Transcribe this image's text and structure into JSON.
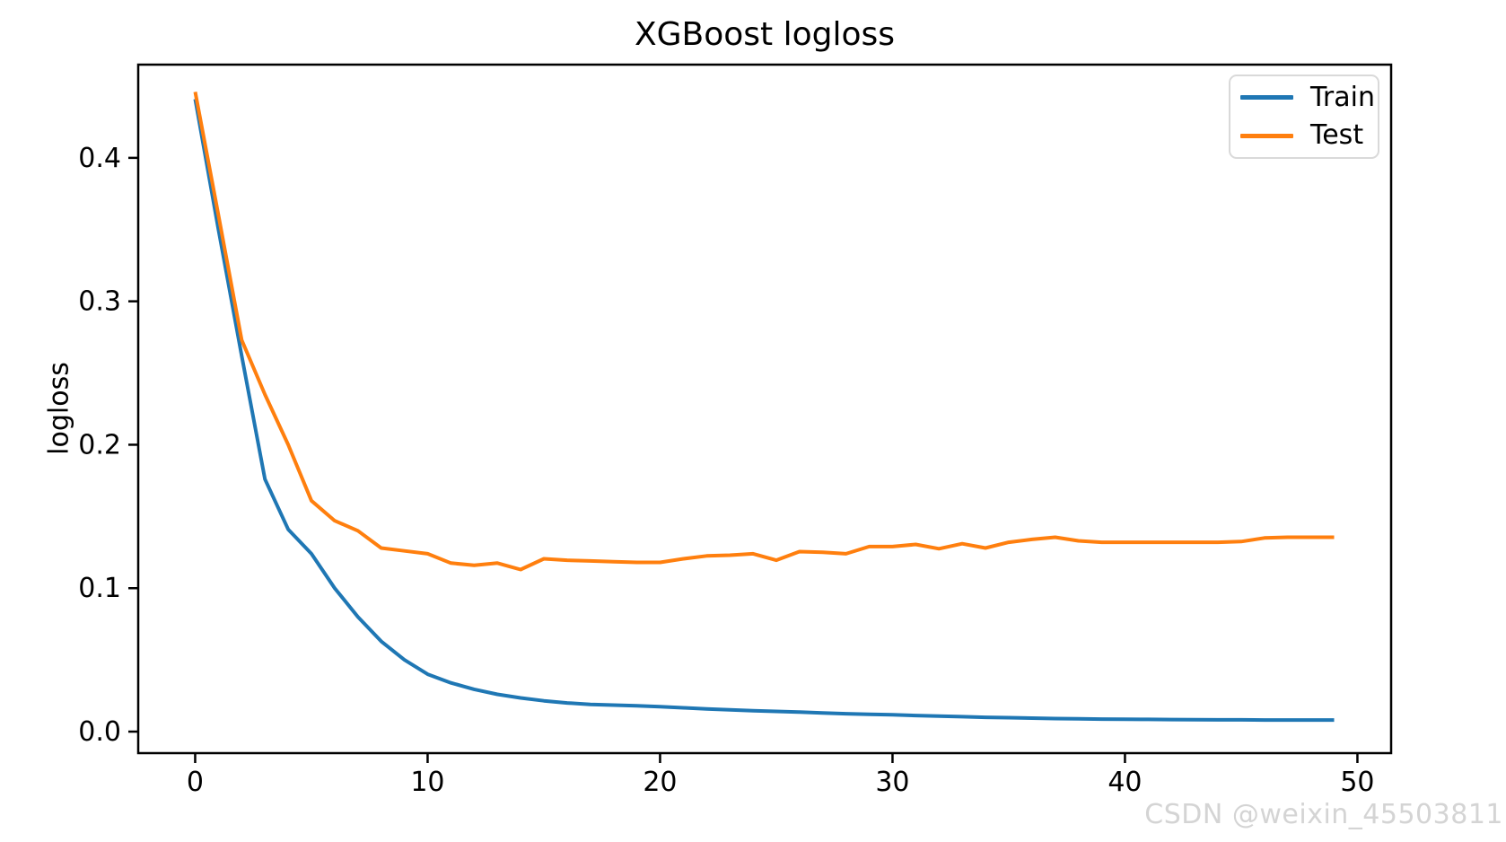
{
  "watermark": {
    "text": "CSDN @weixin_45503811",
    "color": "#d4d4d4"
  },
  "colors": {
    "train_line": "#1f77b4",
    "test_line": "#ff7f0e",
    "axis": "#000000",
    "legend_border": "#d9d9d9",
    "background": "#ffffff"
  },
  "legend": {
    "entries": [
      "Train",
      "Test"
    ],
    "position": "upper right"
  },
  "chart_data": {
    "type": "line",
    "title": "XGBoost logloss",
    "xlabel": "",
    "ylabel": "logloss",
    "x": [
      0,
      1,
      2,
      3,
      4,
      5,
      6,
      7,
      8,
      9,
      10,
      11,
      12,
      13,
      14,
      15,
      16,
      17,
      18,
      19,
      20,
      21,
      22,
      23,
      24,
      25,
      26,
      27,
      28,
      29,
      30,
      31,
      32,
      33,
      34,
      35,
      36,
      37,
      38,
      39,
      40,
      41,
      42,
      43,
      44,
      45,
      46,
      47,
      48,
      49
    ],
    "series": [
      {
        "name": "Train",
        "color": "#1f77b4",
        "values": [
          0.441,
          0.35,
          0.262,
          0.176,
          0.141,
          0.124,
          0.1,
          0.08,
          0.063,
          0.05,
          0.04,
          0.034,
          0.0295,
          0.026,
          0.0235,
          0.0215,
          0.02,
          0.019,
          0.0185,
          0.018,
          0.0174,
          0.0166,
          0.0158,
          0.0152,
          0.0146,
          0.0141,
          0.0136,
          0.013,
          0.0125,
          0.0121,
          0.0117,
          0.0112,
          0.0108,
          0.0104,
          0.01,
          0.0097,
          0.0094,
          0.0091,
          0.0089,
          0.0087,
          0.0086,
          0.0085,
          0.0084,
          0.0083,
          0.0082,
          0.0082,
          0.0081,
          0.0081,
          0.0081,
          0.0081
        ]
      },
      {
        "name": "Test",
        "color": "#ff7f0e",
        "values": [
          0.446,
          0.36,
          0.273,
          0.235,
          0.2,
          0.161,
          0.147,
          0.14,
          0.128,
          0.126,
          0.124,
          0.1175,
          0.116,
          0.1175,
          0.113,
          0.1205,
          0.1195,
          0.119,
          0.1185,
          0.118,
          0.118,
          0.1205,
          0.1225,
          0.123,
          0.124,
          0.1195,
          0.1255,
          0.125,
          0.124,
          0.129,
          0.129,
          0.1305,
          0.1275,
          0.131,
          0.128,
          0.132,
          0.134,
          0.1355,
          0.133,
          0.132,
          0.132,
          0.132,
          0.132,
          0.132,
          0.132,
          0.1325,
          0.135,
          0.1355,
          0.1355,
          0.1355
        ]
      }
    ],
    "xticks": [
      0,
      10,
      20,
      30,
      40,
      50
    ],
    "yticks": [
      0.0,
      0.1,
      0.2,
      0.3,
      0.4
    ],
    "xlim": [
      -2.45,
      51.45
    ],
    "ylim": [
      -0.015,
      0.465
    ],
    "grid": false,
    "legend_position": "upper right"
  }
}
